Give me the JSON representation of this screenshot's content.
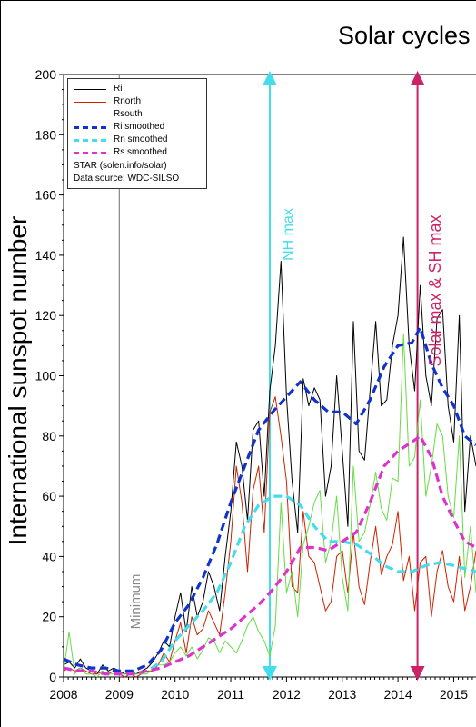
{
  "chart_data": {
    "type": "line",
    "title": "Solar cycles",
    "xlabel": "",
    "ylabel": "International sunspot number",
    "xlim": [
      2008.0,
      2015.4
    ],
    "ylim": [
      0,
      200
    ],
    "x_ticks": [
      "2008",
      "2009",
      "2010",
      "2011",
      "2012",
      "2013",
      "2014",
      "2015"
    ],
    "y_ticks": [
      "0",
      "20",
      "40",
      "60",
      "80",
      "100",
      "120",
      "140",
      "160",
      "180",
      "200"
    ],
    "grid": false,
    "legend_position": "top-left",
    "legend_notes": [
      "STAR (solen.info/solar)",
      "Data source: WDC-SILSO"
    ],
    "series": [
      {
        "name": "Ri",
        "color": "#000000",
        "style": "solid",
        "x": [
          2008.0,
          2008.1,
          2008.2,
          2008.3,
          2008.4,
          2008.5,
          2008.6,
          2008.7,
          2008.8,
          2008.9,
          2009.0,
          2009.1,
          2009.2,
          2009.3,
          2009.4,
          2009.5,
          2009.6,
          2009.7,
          2009.8,
          2009.9,
          2010.0,
          2010.1,
          2010.2,
          2010.3,
          2010.4,
          2010.5,
          2010.6,
          2010.7,
          2010.8,
          2010.9,
          2011.0,
          2011.1,
          2011.2,
          2011.3,
          2011.4,
          2011.5,
          2011.6,
          2011.7,
          2011.8,
          2011.9,
          2012.0,
          2012.1,
          2012.2,
          2012.3,
          2012.4,
          2012.5,
          2012.6,
          2012.7,
          2012.8,
          2012.9,
          2013.0,
          2013.1,
          2013.2,
          2013.3,
          2013.4,
          2013.5,
          2013.6,
          2013.7,
          2013.8,
          2013.9,
          2014.0,
          2014.1,
          2014.2,
          2014.3,
          2014.4,
          2014.5,
          2014.6,
          2014.7,
          2014.8,
          2014.9,
          2015.0,
          2015.1,
          2015.2,
          2015.3,
          2015.4
        ],
        "values": [
          4,
          5,
          3,
          6,
          3,
          2,
          1,
          4,
          2,
          3,
          2,
          1,
          2,
          1,
          2,
          3,
          5,
          8,
          12,
          10,
          20,
          28,
          15,
          30,
          20,
          25,
          35,
          30,
          22,
          40,
          55,
          78,
          70,
          52,
          82,
          85,
          60,
          95,
          110,
          138,
          93,
          65,
          48,
          99,
          90,
          96,
          92,
          60,
          70,
          100,
          75,
          50,
          118,
          75,
          72,
          95,
          118,
          90,
          92,
          110,
          120,
          146,
          110,
          95,
          130,
          100,
          90,
          119,
          122,
          90,
          78,
          120,
          55,
          80,
          70
        ]
      },
      {
        "name": "Rnorth",
        "color": "#cc2200",
        "style": "solid",
        "x": [
          2008.0,
          2008.1,
          2008.2,
          2008.3,
          2008.4,
          2008.5,
          2008.6,
          2008.7,
          2008.8,
          2008.9,
          2009.0,
          2009.1,
          2009.2,
          2009.3,
          2009.4,
          2009.5,
          2009.6,
          2009.7,
          2009.8,
          2009.9,
          2010.0,
          2010.1,
          2010.2,
          2010.3,
          2010.4,
          2010.5,
          2010.6,
          2010.7,
          2010.8,
          2010.9,
          2011.0,
          2011.1,
          2011.2,
          2011.3,
          2011.4,
          2011.5,
          2011.6,
          2011.7,
          2011.8,
          2011.9,
          2012.0,
          2012.1,
          2012.2,
          2012.3,
          2012.4,
          2012.5,
          2012.6,
          2012.7,
          2012.8,
          2012.9,
          2013.0,
          2013.1,
          2013.2,
          2013.3,
          2013.4,
          2013.5,
          2013.6,
          2013.7,
          2013.8,
          2013.9,
          2014.0,
          2014.1,
          2014.2,
          2014.3,
          2014.4,
          2014.5,
          2014.6,
          2014.7,
          2014.8,
          2014.9,
          2015.0,
          2015.1,
          2015.2,
          2015.3,
          2015.4
        ],
        "values": [
          2,
          3,
          2,
          3,
          2,
          1,
          1,
          2,
          1,
          2,
          1,
          0,
          1,
          0,
          1,
          2,
          2,
          4,
          8,
          5,
          12,
          18,
          8,
          20,
          14,
          16,
          22,
          18,
          14,
          28,
          45,
          70,
          58,
          35,
          62,
          70,
          48,
          88,
          93,
          80,
          65,
          30,
          28,
          55,
          40,
          38,
          30,
          22,
          25,
          40,
          42,
          28,
          48,
          30,
          24,
          38,
          50,
          34,
          40,
          44,
          55,
          32,
          40,
          22,
          38,
          40,
          20,
          35,
          42,
          30,
          25,
          40,
          22,
          30,
          42
        ]
      },
      {
        "name": "Rsouth",
        "color": "#66dd44",
        "style": "solid",
        "x": [
          2008.0,
          2008.1,
          2008.2,
          2008.3,
          2008.4,
          2008.5,
          2008.6,
          2008.7,
          2008.8,
          2008.9,
          2009.0,
          2009.1,
          2009.2,
          2009.3,
          2009.4,
          2009.5,
          2009.6,
          2009.7,
          2009.8,
          2009.9,
          2010.0,
          2010.1,
          2010.2,
          2010.3,
          2010.4,
          2010.5,
          2010.6,
          2010.7,
          2010.8,
          2010.9,
          2011.0,
          2011.1,
          2011.2,
          2011.3,
          2011.4,
          2011.5,
          2011.6,
          2011.7,
          2011.8,
          2011.9,
          2012.0,
          2012.1,
          2012.2,
          2012.3,
          2012.4,
          2012.5,
          2012.6,
          2012.7,
          2012.8,
          2012.9,
          2013.0,
          2013.1,
          2013.2,
          2013.3,
          2013.4,
          2013.5,
          2013.6,
          2013.7,
          2013.8,
          2013.9,
          2014.0,
          2014.1,
          2014.2,
          2014.3,
          2014.4,
          2014.5,
          2014.6,
          2014.7,
          2014.8,
          2014.9,
          2015.0,
          2015.1,
          2015.2,
          2015.3,
          2015.4
        ],
        "values": [
          2,
          15,
          1,
          3,
          1,
          1,
          0,
          2,
          1,
          1,
          1,
          1,
          1,
          1,
          1,
          1,
          3,
          4,
          4,
          5,
          8,
          10,
          7,
          10,
          6,
          9,
          13,
          12,
          8,
          12,
          10,
          8,
          12,
          17,
          20,
          15,
          12,
          7,
          17,
          58,
          28,
          35,
          20,
          44,
          50,
          58,
          62,
          38,
          45,
          60,
          33,
          22,
          70,
          45,
          48,
          57,
          68,
          56,
          52,
          66,
          65,
          114,
          70,
          73,
          92,
          60,
          70,
          84,
          80,
          60,
          53,
          80,
          33,
          50,
          28
        ]
      },
      {
        "name": "Ri smoothed",
        "color": "#1133cc",
        "style": "dashed",
        "x": [
          2008.0,
          2008.25,
          2008.5,
          2008.75,
          2009.0,
          2009.25,
          2009.5,
          2009.75,
          2010.0,
          2010.25,
          2010.5,
          2010.75,
          2011.0,
          2011.25,
          2011.5,
          2011.75,
          2012.0,
          2012.25,
          2012.5,
          2012.75,
          2013.0,
          2013.25,
          2013.5,
          2013.75,
          2014.0,
          2014.25,
          2014.4,
          2014.6,
          2014.8,
          2015.0,
          2015.2,
          2015.4
        ],
        "values": [
          6,
          4,
          3,
          3,
          2,
          2,
          4,
          9,
          18,
          24,
          33,
          44,
          58,
          70,
          82,
          88,
          93,
          98,
          92,
          88,
          88,
          84,
          92,
          103,
          110,
          111,
          116,
          104,
          96,
          90,
          80,
          77
        ]
      },
      {
        "name": "Rn smoothed",
        "color": "#44ddee",
        "style": "dashed",
        "x": [
          2008.0,
          2008.25,
          2008.5,
          2008.75,
          2009.0,
          2009.25,
          2009.5,
          2009.75,
          2010.0,
          2010.25,
          2010.5,
          2010.75,
          2011.0,
          2011.25,
          2011.5,
          2011.75,
          2012.0,
          2012.25,
          2012.5,
          2012.75,
          2013.0,
          2013.25,
          2013.5,
          2013.75,
          2014.0,
          2014.25,
          2014.5,
          2014.75,
          2015.0,
          2015.2,
          2015.4
        ],
        "values": [
          3,
          2,
          2,
          1,
          1,
          1,
          2,
          5,
          12,
          17,
          22,
          28,
          38,
          50,
          57,
          60,
          60,
          57,
          50,
          45,
          45,
          44,
          41,
          37,
          35,
          35,
          37,
          38,
          37,
          36,
          35
        ]
      },
      {
        "name": "Rs smoothed",
        "color": "#dd33cc",
        "style": "dashed",
        "x": [
          2008.0,
          2008.25,
          2008.5,
          2008.75,
          2009.0,
          2009.25,
          2009.5,
          2009.75,
          2010.0,
          2010.25,
          2010.5,
          2010.75,
          2011.0,
          2011.25,
          2011.5,
          2011.75,
          2012.0,
          2012.25,
          2012.5,
          2012.75,
          2013.0,
          2013.25,
          2013.5,
          2013.75,
          2014.0,
          2014.25,
          2014.4,
          2014.6,
          2014.8,
          2015.0,
          2015.2,
          2015.4
        ],
        "values": [
          3,
          2,
          2,
          1,
          1,
          1,
          2,
          3,
          5,
          7,
          10,
          13,
          16,
          20,
          24,
          29,
          35,
          43,
          43,
          42,
          45,
          48,
          58,
          70,
          75,
          78,
          80,
          73,
          60,
          52,
          45,
          43
        ]
      }
    ],
    "annotations": [
      {
        "text": "Minimum",
        "x": 2009.0,
        "color": "#888888",
        "line": "solid"
      },
      {
        "text": "NH max",
        "x": 2011.7,
        "color": "#44ddee",
        "line": "arrow"
      },
      {
        "text": "Solar max & SH max",
        "x": 2014.35,
        "color": "#cc2266",
        "line": "arrow"
      }
    ]
  }
}
